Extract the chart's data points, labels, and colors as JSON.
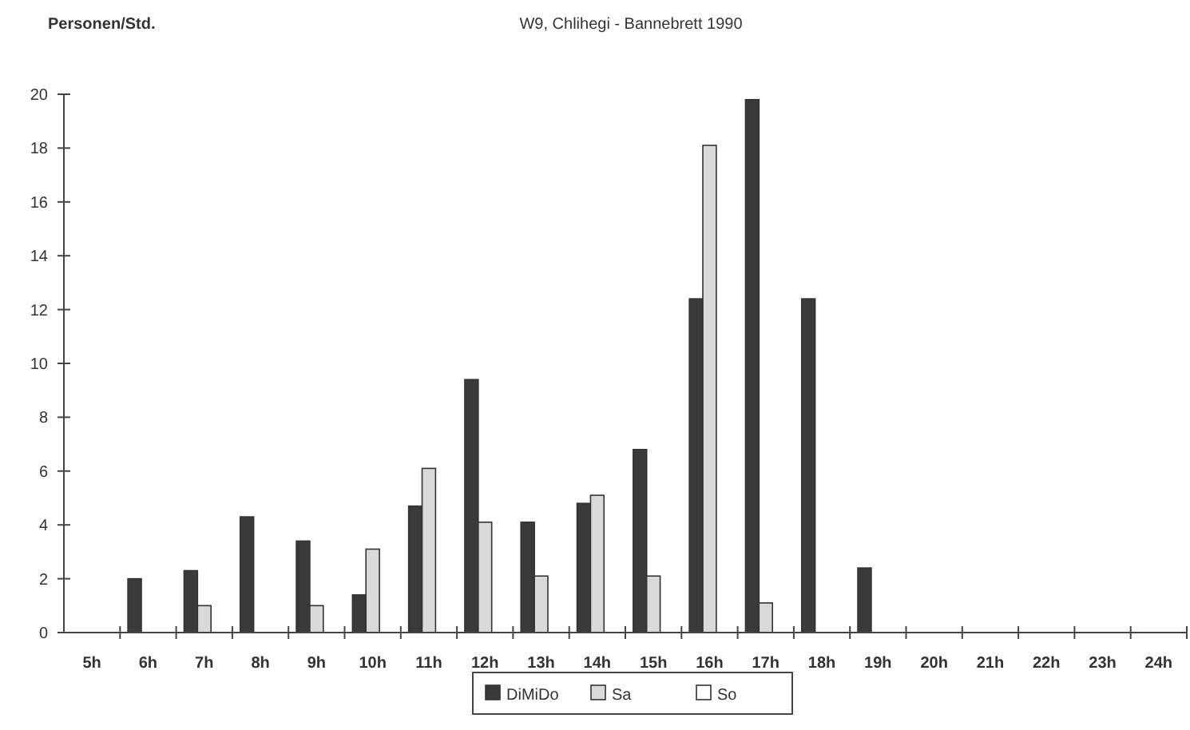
{
  "chart_data": {
    "type": "bar",
    "title": "W9, Chlihegi - Bannebrett 1990",
    "ylabel": "Personen/Std.",
    "categories": [
      "5h",
      "6h",
      "7h",
      "8h",
      "9h",
      "10h",
      "11h",
      "12h",
      "13h",
      "14h",
      "15h",
      "16h",
      "17h",
      "18h",
      "19h",
      "20h",
      "21h",
      "22h",
      "23h",
      "24h"
    ],
    "series": [
      {
        "name": "DiMiDo",
        "color": "#3a3a3a",
        "values": [
          0,
          2.0,
          2.3,
          4.3,
          3.4,
          1.4,
          4.7,
          9.4,
          4.1,
          4.8,
          6.8,
          12.4,
          19.8,
          12.4,
          2.4,
          0,
          0,
          0,
          0,
          0
        ]
      },
      {
        "name": "Sa",
        "color": "#d9d9d9",
        "values": [
          0,
          0,
          1.0,
          0,
          1.0,
          3.1,
          6.1,
          4.1,
          2.1,
          5.1,
          2.1,
          18.1,
          1.1,
          0,
          0,
          0,
          0,
          0,
          0,
          0
        ]
      },
      {
        "name": "So",
        "color": "#ffffff",
        "values": [
          0,
          0,
          0,
          0,
          0,
          0,
          0,
          0,
          0,
          0,
          0,
          0,
          0,
          0,
          0,
          0,
          0,
          0,
          0,
          0
        ]
      }
    ],
    "ylim": [
      0,
      20
    ],
    "yticks": [
      0,
      2,
      4,
      6,
      8,
      10,
      12,
      14,
      16,
      18,
      20
    ],
    "grid": false,
    "legend": "bottom"
  }
}
